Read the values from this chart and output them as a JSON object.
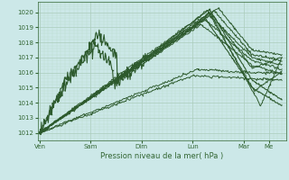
{
  "bg_color": "#cce8e8",
  "grid_color_major": "#aaccbb",
  "grid_color_minor": "#bbddcc",
  "line_color": "#2d5a2d",
  "xlabel": "Pression niveau de la mer( hPa )",
  "ylim": [
    1011.5,
    1020.7
  ],
  "yticks": [
    1012,
    1013,
    1014,
    1015,
    1016,
    1017,
    1018,
    1019,
    1020
  ],
  "x_day_labels": [
    "Ven",
    "Sam",
    "Dim",
    "Lun",
    "Mar",
    "Me"
  ],
  "x_day_positions": [
    0,
    24,
    48,
    72,
    96,
    108
  ],
  "xlim": [
    -1,
    116
  ],
  "figsize": [
    3.2,
    2.0
  ],
  "dpi": 100
}
